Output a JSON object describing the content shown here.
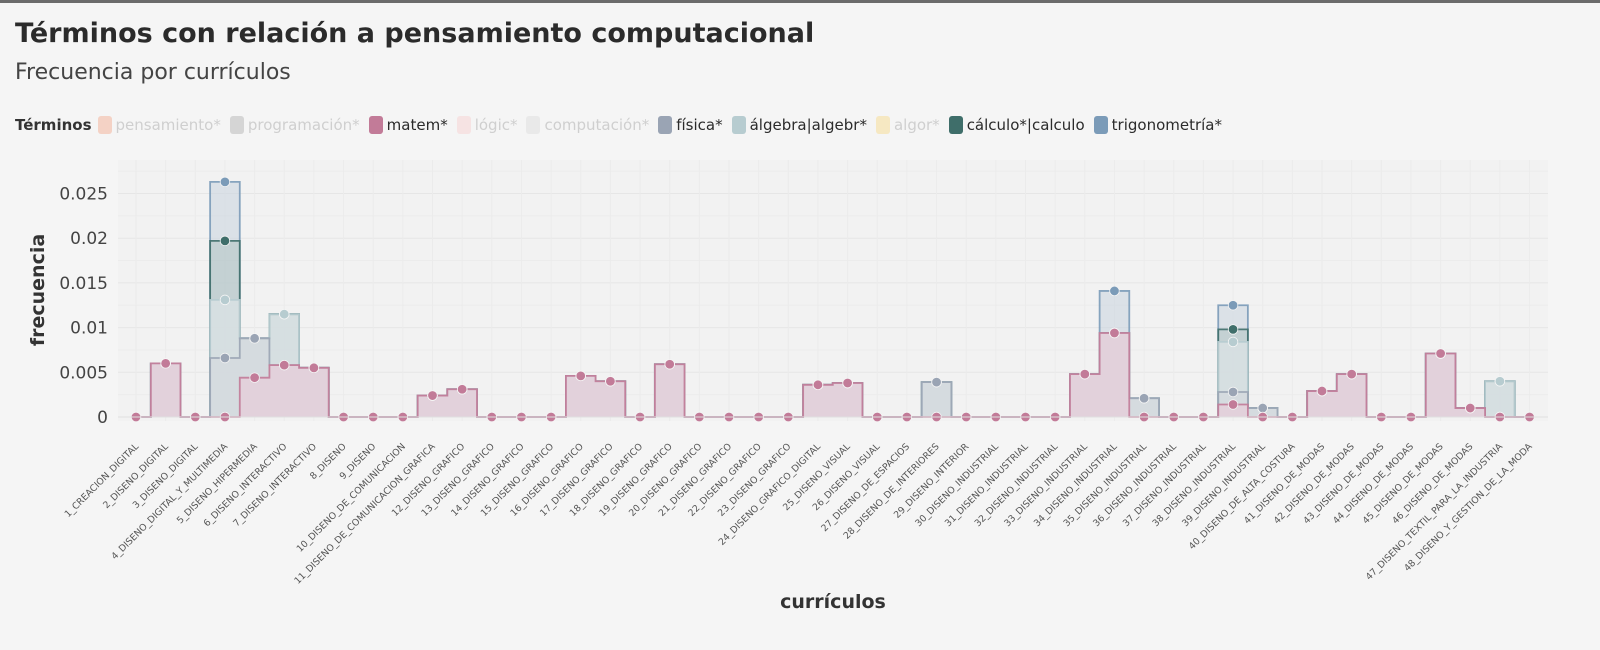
{
  "title": "Términos con relación a pensamiento computacional",
  "subtitle": "Frecuencia por currículos",
  "legend": {
    "title": "Términos",
    "items": [
      {
        "label": "pensamiento*",
        "color": "#f3c6b4",
        "active": false
      },
      {
        "label": "programación*",
        "color": "#c9c9c9",
        "active": false
      },
      {
        "label": "matem*",
        "color": "#c27b98",
        "active": true
      },
      {
        "label": "lógic*",
        "color": "#f6dcdc",
        "active": false
      },
      {
        "label": "computación*",
        "color": "#e4e4e4",
        "active": false
      },
      {
        "label": "física*",
        "color": "#9aa4b4",
        "active": true
      },
      {
        "label": "álgebra|algebr*",
        "color": "#b7ccd0",
        "active": true
      },
      {
        "label": "algor*",
        "color": "#f6e3b0",
        "active": false
      },
      {
        "label": "cálculo*|calculo",
        "color": "#3f6e6a",
        "active": true
      },
      {
        "label": "trigonometría*",
        "color": "#7b9bb8",
        "active": true
      }
    ]
  },
  "chart_data": {
    "type": "area",
    "xlabel": "currículos",
    "ylabel": "frecuencia",
    "ylim": [
      0,
      0.027
    ],
    "yticks": [
      0,
      0.005,
      0.01,
      0.015,
      0.02,
      0.025
    ],
    "ytick_labels": [
      "0",
      "0.005",
      "0.01",
      "0.015",
      "0.02",
      "0.025"
    ],
    "grid": true,
    "categories": [
      "1_CREACION_DIGITAL",
      "2_DISENO_DIGITAL",
      "3_DISENO_DIGITAL",
      "4_DISENO_DIGITAL_Y_MULTIMEDIA",
      "5_DISENO_HIPERMEDIA",
      "6_DISENO_INTERACTIVO",
      "7_DISENO_INTERACTIVO",
      "8_DISENO",
      "9_DISENO",
      "10_DISENO_DE_COMUNICACION",
      "11_DISENO_DE_COMUNICACION_GRAFICA",
      "12_DISENO_GRAFICO",
      "13_DISENO_GRAFICO",
      "14_DISENO_GRAFICO",
      "15_DISENO_GRAFICO",
      "16_DISENO_GRAFICO",
      "17_DISENO_GRAFICO",
      "18_DISENO_GRAFICO",
      "19_DISENO_GRAFICO",
      "20_DISENO_GRAFICO",
      "21_DISENO_GRAFICO",
      "22_DISENO_GRAFICO",
      "23_DISENO_GRAFICO",
      "24_DISENO_GRAFICO_DIGITAL",
      "25_DISENO_VISUAL",
      "26_DISENO_VISUAL",
      "27_DISENO_DE_ESPACIOS",
      "28_DISENO_DE_INTERIORES",
      "29_DISENO_INTERIOR",
      "30_DISENO_INDUSTRIAL",
      "31_DISENO_INDUSTRIAL",
      "32_DISENO_INDUSTRIAL",
      "33_DISENO_INDUSTRIAL",
      "34_DISENO_INDUSTRIAL",
      "35_DISENO_INDUSTRIAL",
      "36_DISENO_INDUSTRIAL",
      "37_DISENO_INDUSTRIAL",
      "38_DISENO_INDUSTRIAL",
      "39_DISENO_INDUSTRIAL",
      "40_DISENO_DE_ALTA_COSTURA",
      "41_DISENO_DE_MODAS",
      "42_DISENO_DE_MODAS",
      "43_DISENO_DE_MODAS",
      "44_DISENO_DE_MODAS",
      "45_DISENO_DE_MODAS",
      "46_DISENO_DE_MODAS",
      "47_DISENO_TEXTIL_PARA_LA_INDUSTRIA",
      "48_DISENO_Y_GESTION_DE_LA_MODA"
    ],
    "series": [
      {
        "name": "matem*",
        "color": "#c27b98",
        "values": [
          0,
          0.006,
          0,
          0,
          0.0044,
          0.0058,
          0.0055,
          0,
          0,
          0,
          0.0024,
          0.0031,
          0,
          0,
          0,
          0.0046,
          0.004,
          0,
          0.0059,
          0,
          0,
          0,
          0,
          0.0036,
          0.0038,
          0,
          0,
          0,
          0,
          0,
          0,
          0,
          0.0048,
          0.0094,
          0,
          0,
          0,
          0.0014,
          0,
          0,
          0.0029,
          0.0048,
          0,
          0,
          0.0071,
          0.001,
          0,
          0
        ]
      },
      {
        "name": "física*",
        "color": "#9aa4b4",
        "values": [
          0,
          0.006,
          0,
          0.0066,
          0.0088,
          0.0058,
          0.0055,
          0,
          0,
          0,
          0.0024,
          0.0031,
          0,
          0,
          0,
          0.0046,
          0.004,
          0,
          0.0059,
          0,
          0,
          0,
          0,
          0.0036,
          0.0038,
          0,
          0,
          0.0039,
          0,
          0,
          0,
          0,
          0.0048,
          0.0094,
          0.0021,
          0,
          0,
          0.0028,
          0.001,
          0,
          0.0029,
          0.0048,
          0,
          0,
          0.0071,
          0.001,
          0,
          0
        ]
      },
      {
        "name": "álgebra|algebr*",
        "color": "#b7ccd0",
        "values": [
          0,
          0.006,
          0,
          0.0131,
          0.0088,
          0.0115,
          0.0055,
          0,
          0,
          0,
          0.0024,
          0.0031,
          0,
          0,
          0,
          0.0046,
          0.004,
          0,
          0.0059,
          0,
          0,
          0,
          0,
          0.0036,
          0.0038,
          0,
          0,
          0.0039,
          0,
          0,
          0,
          0,
          0.0048,
          0.0094,
          0.0021,
          0,
          0,
          0.0084,
          0.001,
          0,
          0.0029,
          0.0048,
          0,
          0,
          0.0071,
          0.001,
          0.004,
          0
        ]
      },
      {
        "name": "cálculo*|calculo",
        "color": "#3f6e6a",
        "values": [
          0,
          0.006,
          0,
          0.0197,
          0.0088,
          0.0115,
          0.0055,
          0,
          0,
          0,
          0.0024,
          0.0031,
          0,
          0,
          0,
          0.0046,
          0.004,
          0,
          0.0059,
          0,
          0,
          0,
          0,
          0.0036,
          0.0038,
          0,
          0,
          0.0039,
          0,
          0,
          0,
          0,
          0.0048,
          0.0094,
          0.0021,
          0,
          0,
          0.0098,
          0.001,
          0,
          0.0029,
          0.0048,
          0,
          0,
          0.0071,
          0.001,
          0.004,
          0
        ]
      },
      {
        "name": "trigonometría*",
        "color": "#7b9bb8",
        "values": [
          0,
          0.006,
          0,
          0.0263,
          0.0088,
          0.0115,
          0.0055,
          0,
          0,
          0,
          0.0024,
          0.0031,
          0,
          0,
          0,
          0.0046,
          0.004,
          0,
          0.0059,
          0,
          0,
          0,
          0,
          0.0036,
          0.0038,
          0,
          0,
          0.0039,
          0,
          0,
          0,
          0,
          0.0048,
          0.0141,
          0.0021,
          0,
          0,
          0.0125,
          0.001,
          0,
          0.0029,
          0.0048,
          0,
          0,
          0.0071,
          0.001,
          0.004,
          0
        ]
      }
    ]
  }
}
